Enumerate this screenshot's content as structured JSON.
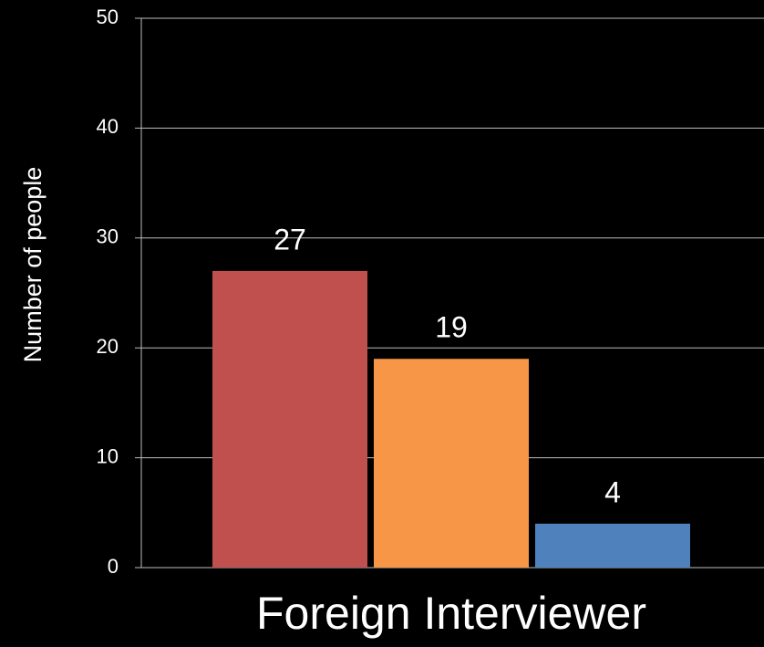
{
  "chart_data": {
    "type": "bar",
    "ylabel": "Number of people",
    "categories": [
      "Foreign Interviewer"
    ],
    "series": [
      {
        "color": "#c0504d",
        "values": [
          27
        ]
      },
      {
        "color": "#f79646",
        "values": [
          19
        ]
      },
      {
        "color": "#4f81bd",
        "values": [
          4
        ]
      }
    ],
    "ylim": [
      0,
      50
    ],
    "yticks": [
      0,
      10,
      20,
      30,
      40,
      50
    ],
    "grid": true
  }
}
